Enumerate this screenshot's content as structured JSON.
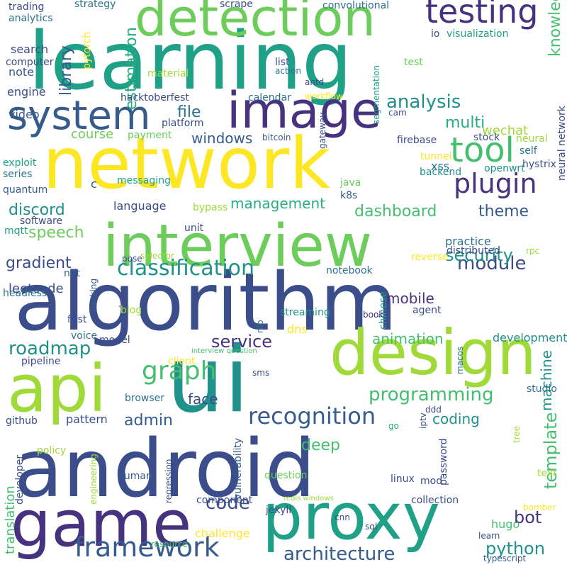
{
  "palette": {
    "background": "#ffffff",
    "purple": "#46327e",
    "indigo": "#3b4d8a",
    "blue": "#365c8d",
    "steel": "#2c728e",
    "teal": "#21918c",
    "sea": "#1fa187",
    "green": "#27ad81",
    "emerald": "#44bf70",
    "lime": "#6ccd5a",
    "yellowgreen": "#a0da39",
    "yellow": "#fde725"
  },
  "words": [
    "learning",
    "network",
    "android",
    "algorithm",
    "interview",
    "api",
    "ui",
    "design",
    "game",
    "proxy",
    "detection",
    "image",
    "system",
    "testing",
    "tool",
    "plugin",
    "classification",
    "recognition",
    "framework",
    "graph",
    "architecture",
    "programming",
    "roadmap",
    "analysis",
    "service",
    "python",
    "code",
    "bot",
    "module",
    "security",
    "theme",
    "dashboard",
    "management",
    "speech",
    "discord",
    "library",
    "estimation",
    "knowledge",
    "file",
    "windows",
    "course",
    "multi",
    "wechat",
    "mobile",
    "animation",
    "development",
    "machine",
    "template",
    "admin",
    "face",
    "coding",
    "deep",
    "gradient",
    "leetcode",
    "note",
    "engine",
    "video",
    "search",
    "computer",
    "analytics",
    "trading",
    "strategy",
    "scrape",
    "convolutional",
    "io",
    "visualization",
    "pytorch",
    "material",
    "list",
    "action",
    "antd",
    "test",
    "hacktoberfest",
    "workflow",
    "calendar",
    "cam",
    "payment",
    "platform",
    "bitcoin",
    "firebase",
    "stock",
    "neural",
    "self",
    "exploit",
    "series",
    "quantum",
    "messaging",
    "c",
    "language",
    "bypass",
    "gateway",
    "java",
    "xss",
    "k8s",
    "segmentation",
    "tunnel",
    "backend",
    "openwrt",
    "hystrix",
    "mqtt",
    "software",
    "unit",
    "practice",
    "distributed",
    "neural network",
    "rpc",
    "net",
    "notebook",
    "chinese",
    "reverse",
    "selector",
    "pose",
    "demo",
    "hacking",
    "headless",
    "blog",
    "streaming",
    "agent",
    "first",
    "voice",
    "model",
    "nlp",
    "book",
    "interview question",
    "client",
    "pipeline",
    "macos",
    "sms",
    "studio",
    "browser",
    "pattern",
    "github",
    "iptv",
    "ddd",
    "go",
    "tree",
    "developer",
    "policy",
    "human",
    "regression",
    "vulnerability",
    "question",
    "password",
    "text",
    "linux",
    "mod",
    "engineering",
    "redis windows",
    "jekyll",
    "component",
    "collection",
    "translation",
    "cnn",
    "sql",
    "bomber",
    "hugo",
    "learn",
    "challenge",
    "resource",
    "typescript",
    "dns"
  ]
}
